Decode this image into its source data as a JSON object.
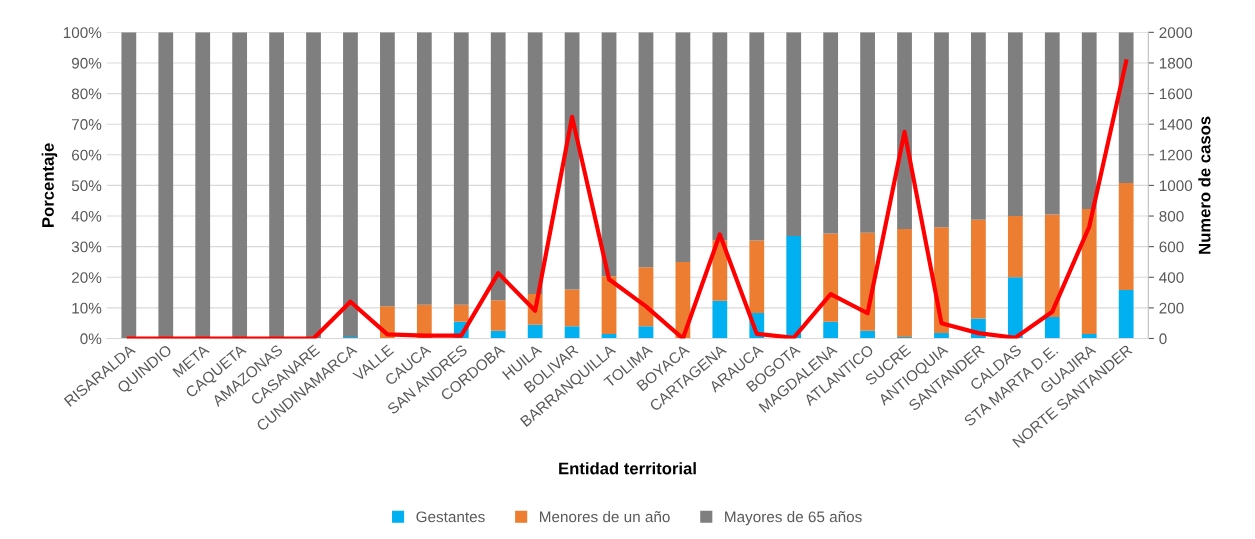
{
  "chart_data": {
    "type": "bar",
    "stacked": true,
    "xlabel": "Entidad territorial",
    "ylabel": "Porcentaje",
    "y2label": "Numero de casos",
    "categories": [
      "RISARALDA",
      "QUINDIO",
      "META",
      "CAQUETA",
      "AMAZONAS",
      "CASANARE",
      "CUNDINAMARCA",
      "VALLE",
      "CAUCA",
      "SAN ANDRES",
      "CORDOBA",
      "HUILA",
      "BOLIVAR",
      "BARRANQUILLA",
      "TOLIMA",
      "BOYACA",
      "CARTAGENA",
      "ARAUCA",
      "BOGOTA",
      "MAGDALENA",
      "ATLANTICO",
      "SUCRE",
      "ANTIOQUIA",
      "SANTANDER",
      "CALDAS",
      "STA MARTA D.E.",
      "GUAJIRA",
      "NORTE SANTANDER"
    ],
    "series": [
      {
        "name": "Gestantes",
        "color": "#00b0f0",
        "values": [
          0,
          0,
          0,
          0,
          0,
          0,
          0.5,
          0,
          0,
          5.5,
          2.5,
          4.5,
          4,
          1.5,
          4,
          0,
          12.3,
          8.3,
          33.5,
          5.5,
          2.5,
          0.5,
          1.8,
          6.5,
          20,
          7,
          1.5,
          15.8
        ]
      },
      {
        "name": "Menores de un año",
        "color": "#ed7d31",
        "values": [
          0,
          0,
          0,
          0,
          0,
          0,
          0,
          10.5,
          11,
          5.5,
          10,
          10,
          12,
          18.8,
          19.3,
          25,
          19.7,
          23.7,
          0,
          28.8,
          32,
          35.3,
          34.5,
          32.3,
          20,
          33.5,
          40.8,
          35
        ]
      },
      {
        "name": "Mayores de 65 años",
        "color": "#7f7f7f",
        "values": [
          100,
          100,
          100,
          100,
          100,
          100,
          99.5,
          89.5,
          89,
          89,
          87.5,
          85.5,
          84,
          79.7,
          76.7,
          75,
          68,
          68,
          66.5,
          65.7,
          65.5,
          64.2,
          63.7,
          61.2,
          60,
          59.5,
          57.7,
          49.2
        ]
      },
      {
        "type": "line",
        "axis": "y2",
        "color": "#ff0000",
        "values": [
          0,
          0,
          0,
          0,
          0,
          0,
          240,
          27,
          19,
          19,
          427,
          181,
          1448,
          387,
          210,
          0,
          680,
          30,
          5,
          290,
          165,
          1350,
          100,
          35,
          5,
          175,
          730,
          1810
        ]
      }
    ],
    "ylim": [
      0,
      100
    ],
    "yticks": [
      {
        "value": 0,
        "label": "0%"
      },
      {
        "value": 10,
        "label": "10%"
      },
      {
        "value": 20,
        "label": "20%"
      },
      {
        "value": 30,
        "label": "30%"
      },
      {
        "value": 40,
        "label": "40%"
      },
      {
        "value": 50,
        "label": "50%"
      },
      {
        "value": 60,
        "label": "60%"
      },
      {
        "value": 70,
        "label": "70%"
      },
      {
        "value": 80,
        "label": "80%"
      },
      {
        "value": 90,
        "label": "90%"
      },
      {
        "value": 100,
        "label": "100%"
      }
    ],
    "y2lim": [
      0,
      2000
    ],
    "y2ticks": [
      0,
      200,
      400,
      600,
      800,
      1000,
      1200,
      1400,
      1600,
      1800,
      2000
    ],
    "grid": "y",
    "legend": "bottom"
  }
}
